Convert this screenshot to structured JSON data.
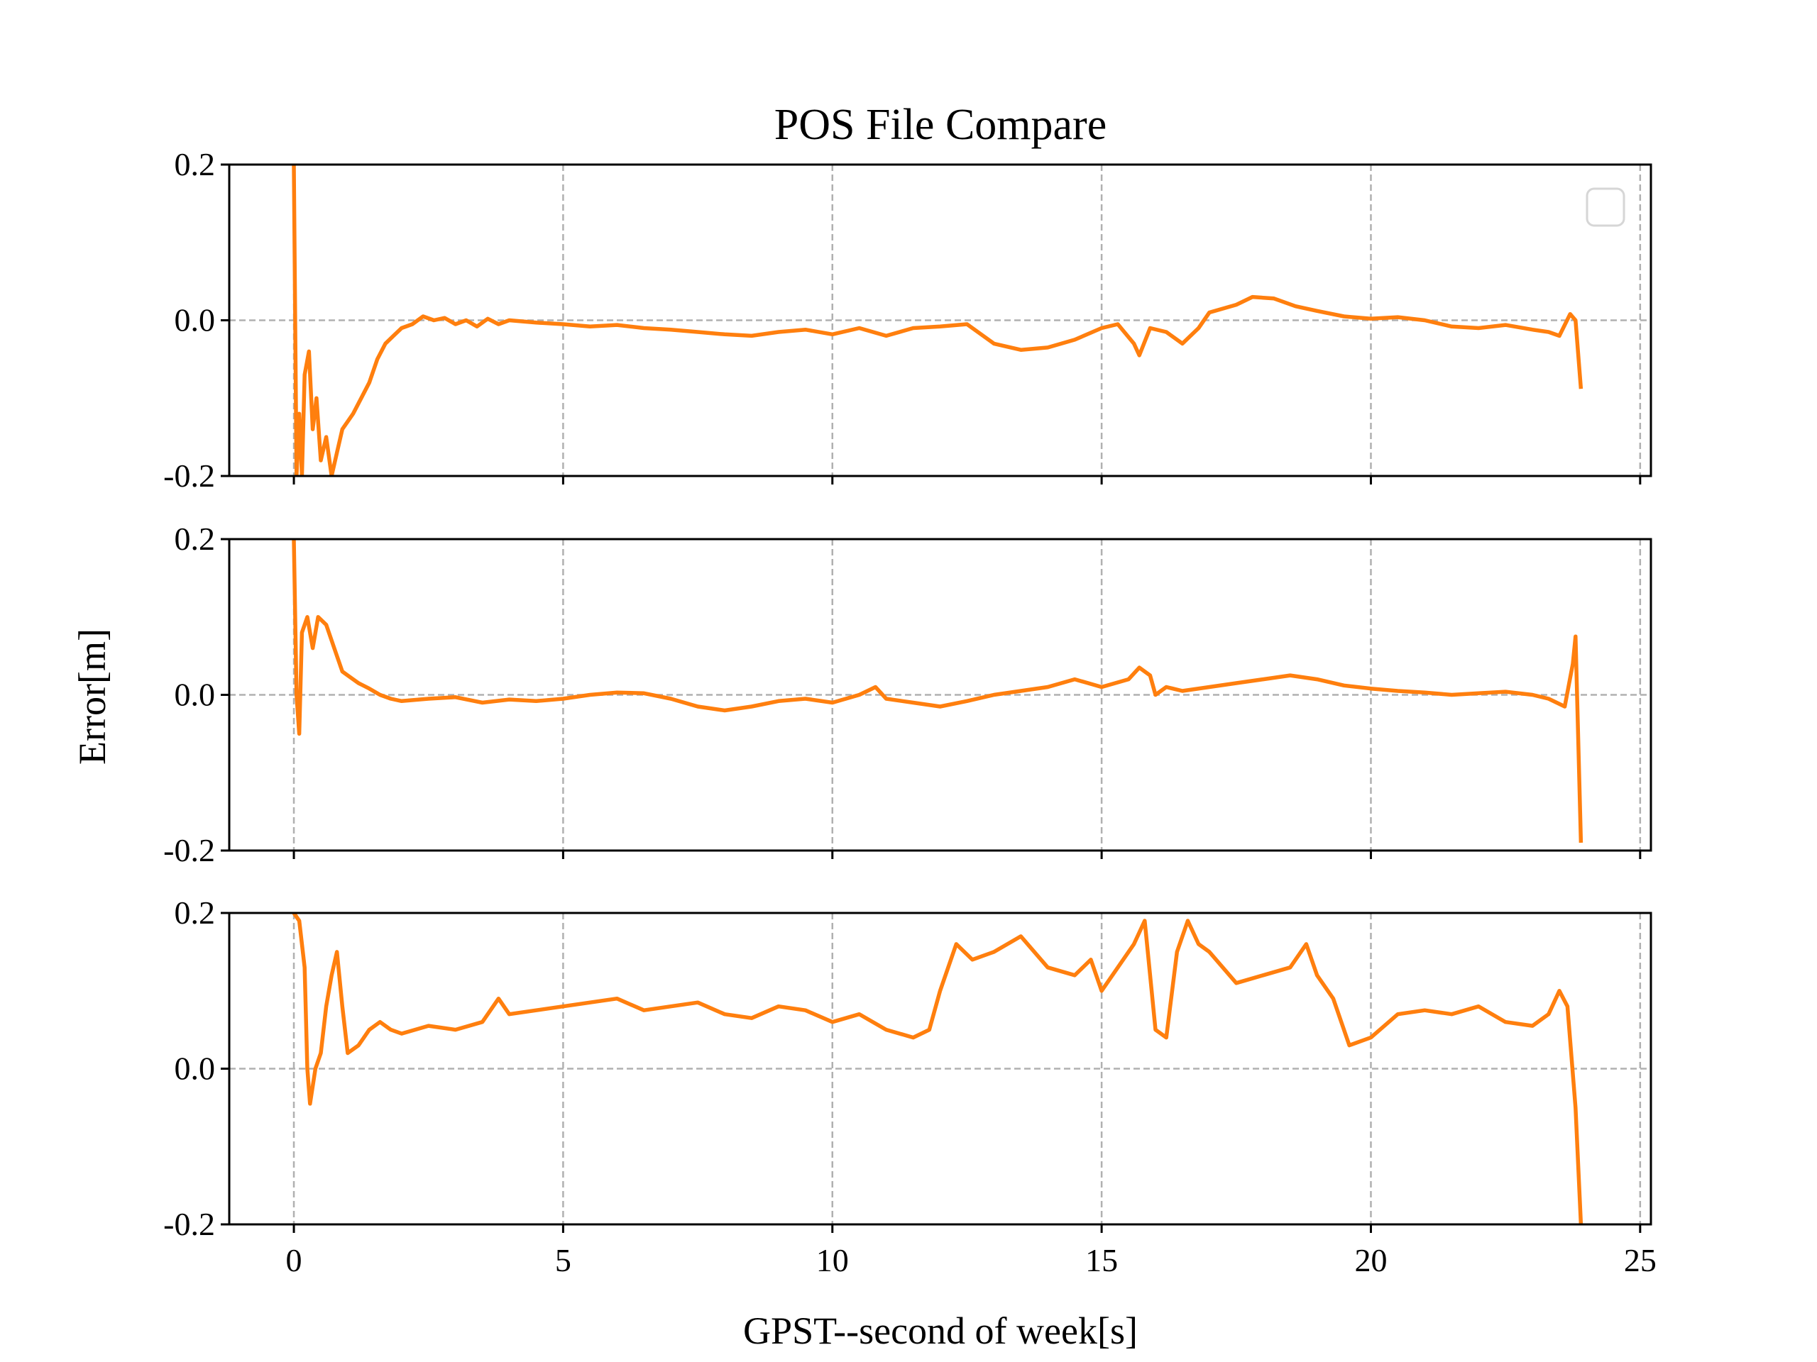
{
  "chart_data": {
    "type": "line",
    "title": "POS File Compare",
    "xlabel": "GPST--second of week[s]",
    "ylabel": "Error[m]",
    "xlim": [
      -1.2,
      25.2
    ],
    "xticks": [
      "0",
      "5",
      "10",
      "15",
      "20",
      "25"
    ],
    "xtick_values": [
      0,
      5,
      10,
      15,
      20,
      25
    ],
    "grid": true,
    "legend": "top-right (empty)",
    "line_color": "#ff7f0e",
    "panels": [
      {
        "name": "",
        "ylim": [
          -0.2,
          0.2
        ],
        "yticks": [
          "0.2",
          "0.0",
          "-0.2"
        ],
        "ytick_values": [
          0.2,
          0.0,
          -0.2
        ],
        "has_legend": true,
        "points": [
          [
            0.0,
            0.2
          ],
          [
            0.05,
            -0.2
          ],
          [
            0.1,
            -0.12
          ],
          [
            0.15,
            -0.2
          ],
          [
            0.2,
            -0.07
          ],
          [
            0.28,
            -0.04
          ],
          [
            0.35,
            -0.14
          ],
          [
            0.42,
            -0.1
          ],
          [
            0.5,
            -0.18
          ],
          [
            0.6,
            -0.15
          ],
          [
            0.7,
            -0.2
          ],
          [
            0.8,
            -0.17
          ],
          [
            0.9,
            -0.14
          ],
          [
            1.0,
            -0.13
          ],
          [
            1.1,
            -0.12
          ],
          [
            1.25,
            -0.1
          ],
          [
            1.4,
            -0.08
          ],
          [
            1.55,
            -0.05
          ],
          [
            1.7,
            -0.03
          ],
          [
            1.85,
            -0.02
          ],
          [
            2.0,
            -0.01
          ],
          [
            2.2,
            -0.005
          ],
          [
            2.4,
            0.005
          ],
          [
            2.6,
            0.0
          ],
          [
            2.8,
            0.003
          ],
          [
            3.0,
            -0.005
          ],
          [
            3.2,
            0.0
          ],
          [
            3.4,
            -0.008
          ],
          [
            3.6,
            0.002
          ],
          [
            3.8,
            -0.005
          ],
          [
            4.0,
            0.0
          ],
          [
            4.5,
            -0.003
          ],
          [
            5.0,
            -0.005
          ],
          [
            5.5,
            -0.008
          ],
          [
            6.0,
            -0.006
          ],
          [
            6.5,
            -0.01
          ],
          [
            7.0,
            -0.012
          ],
          [
            7.5,
            -0.015
          ],
          [
            8.0,
            -0.018
          ],
          [
            8.5,
            -0.02
          ],
          [
            9.0,
            -0.015
          ],
          [
            9.5,
            -0.012
          ],
          [
            10.0,
            -0.018
          ],
          [
            10.5,
            -0.01
          ],
          [
            11.0,
            -0.02
          ],
          [
            11.5,
            -0.01
          ],
          [
            12.0,
            -0.008
          ],
          [
            12.5,
            -0.005
          ],
          [
            13.0,
            -0.03
          ],
          [
            13.5,
            -0.038
          ],
          [
            14.0,
            -0.035
          ],
          [
            14.5,
            -0.025
          ],
          [
            15.0,
            -0.01
          ],
          [
            15.3,
            -0.005
          ],
          [
            15.6,
            -0.03
          ],
          [
            15.7,
            -0.045
          ],
          [
            15.9,
            -0.01
          ],
          [
            16.2,
            -0.015
          ],
          [
            16.5,
            -0.03
          ],
          [
            16.8,
            -0.01
          ],
          [
            17.0,
            0.01
          ],
          [
            17.5,
            0.02
          ],
          [
            17.8,
            0.03
          ],
          [
            18.2,
            0.028
          ],
          [
            18.6,
            0.018
          ],
          [
            19.0,
            0.012
          ],
          [
            19.5,
            0.005
          ],
          [
            20.0,
            0.002
          ],
          [
            20.5,
            0.004
          ],
          [
            21.0,
            0.0
          ],
          [
            21.5,
            -0.008
          ],
          [
            22.0,
            -0.01
          ],
          [
            22.5,
            -0.006
          ],
          [
            23.0,
            -0.012
          ],
          [
            23.3,
            -0.015
          ],
          [
            23.5,
            -0.02
          ],
          [
            23.7,
            0.008
          ],
          [
            23.8,
            0.0
          ],
          [
            23.9,
            -0.088
          ]
        ]
      },
      {
        "name": "",
        "ylim": [
          -0.2,
          0.2
        ],
        "yticks": [
          "0.2",
          "0.0",
          "-0.2"
        ],
        "ytick_values": [
          0.2,
          0.0,
          -0.2
        ],
        "has_legend": false,
        "points": [
          [
            0.0,
            0.2
          ],
          [
            0.05,
            0.0
          ],
          [
            0.1,
            -0.05
          ],
          [
            0.15,
            0.08
          ],
          [
            0.25,
            0.1
          ],
          [
            0.35,
            0.06
          ],
          [
            0.45,
            0.1
          ],
          [
            0.6,
            0.09
          ],
          [
            0.75,
            0.06
          ],
          [
            0.9,
            0.03
          ],
          [
            1.0,
            0.025
          ],
          [
            1.2,
            0.015
          ],
          [
            1.4,
            0.008
          ],
          [
            1.6,
            0.0
          ],
          [
            1.8,
            -0.005
          ],
          [
            2.0,
            -0.008
          ],
          [
            2.5,
            -0.005
          ],
          [
            3.0,
            -0.003
          ],
          [
            3.5,
            -0.01
          ],
          [
            4.0,
            -0.006
          ],
          [
            4.5,
            -0.008
          ],
          [
            5.0,
            -0.005
          ],
          [
            5.5,
            0.0
          ],
          [
            6.0,
            0.003
          ],
          [
            6.5,
            0.002
          ],
          [
            7.0,
            -0.005
          ],
          [
            7.5,
            -0.015
          ],
          [
            8.0,
            -0.02
          ],
          [
            8.5,
            -0.015
          ],
          [
            9.0,
            -0.008
          ],
          [
            9.5,
            -0.005
          ],
          [
            10.0,
            -0.01
          ],
          [
            10.5,
            0.0
          ],
          [
            10.8,
            0.01
          ],
          [
            11.0,
            -0.005
          ],
          [
            11.5,
            -0.01
          ],
          [
            12.0,
            -0.015
          ],
          [
            12.5,
            -0.008
          ],
          [
            13.0,
            0.0
          ],
          [
            13.5,
            0.005
          ],
          [
            14.0,
            0.01
          ],
          [
            14.5,
            0.02
          ],
          [
            15.0,
            0.01
          ],
          [
            15.5,
            0.02
          ],
          [
            15.7,
            0.035
          ],
          [
            15.9,
            0.025
          ],
          [
            16.0,
            0.0
          ],
          [
            16.2,
            0.01
          ],
          [
            16.5,
            0.005
          ],
          [
            17.0,
            0.01
          ],
          [
            17.5,
            0.015
          ],
          [
            18.0,
            0.02
          ],
          [
            18.5,
            0.025
          ],
          [
            19.0,
            0.02
          ],
          [
            19.5,
            0.012
          ],
          [
            20.0,
            0.008
          ],
          [
            20.5,
            0.005
          ],
          [
            21.0,
            0.003
          ],
          [
            21.5,
            0.0
          ],
          [
            22.0,
            0.002
          ],
          [
            22.5,
            0.004
          ],
          [
            23.0,
            0.0
          ],
          [
            23.3,
            -0.005
          ],
          [
            23.6,
            -0.015
          ],
          [
            23.75,
            0.04
          ],
          [
            23.8,
            0.075
          ],
          [
            23.9,
            -0.19
          ]
        ]
      },
      {
        "name": "",
        "ylim": [
          -0.2,
          0.2
        ],
        "yticks": [
          "0.2",
          "0.0",
          "-0.2"
        ],
        "ytick_values": [
          0.2,
          0.0,
          -0.2
        ],
        "has_legend": false,
        "points": [
          [
            0.0,
            0.2
          ],
          [
            0.1,
            0.19
          ],
          [
            0.2,
            0.13
          ],
          [
            0.25,
            0.0
          ],
          [
            0.3,
            -0.045
          ],
          [
            0.4,
            0.0
          ],
          [
            0.5,
            0.02
          ],
          [
            0.6,
            0.08
          ],
          [
            0.7,
            0.12
          ],
          [
            0.8,
            0.15
          ],
          [
            0.9,
            0.08
          ],
          [
            1.0,
            0.02
          ],
          [
            1.2,
            0.03
          ],
          [
            1.4,
            0.05
          ],
          [
            1.6,
            0.06
          ],
          [
            1.8,
            0.05
          ],
          [
            2.0,
            0.045
          ],
          [
            2.5,
            0.055
          ],
          [
            3.0,
            0.05
          ],
          [
            3.5,
            0.06
          ],
          [
            3.8,
            0.09
          ],
          [
            4.0,
            0.07
          ],
          [
            4.5,
            0.075
          ],
          [
            5.0,
            0.08
          ],
          [
            5.5,
            0.085
          ],
          [
            6.0,
            0.09
          ],
          [
            6.5,
            0.075
          ],
          [
            7.0,
            0.08
          ],
          [
            7.5,
            0.085
          ],
          [
            8.0,
            0.07
          ],
          [
            8.5,
            0.065
          ],
          [
            9.0,
            0.08
          ],
          [
            9.5,
            0.075
          ],
          [
            10.0,
            0.06
          ],
          [
            10.5,
            0.07
          ],
          [
            11.0,
            0.05
          ],
          [
            11.5,
            0.04
          ],
          [
            11.8,
            0.05
          ],
          [
            12.0,
            0.1
          ],
          [
            12.3,
            0.16
          ],
          [
            12.6,
            0.14
          ],
          [
            13.0,
            0.15
          ],
          [
            13.5,
            0.17
          ],
          [
            14.0,
            0.13
          ],
          [
            14.5,
            0.12
          ],
          [
            14.8,
            0.14
          ],
          [
            15.0,
            0.1
          ],
          [
            15.3,
            0.13
          ],
          [
            15.6,
            0.16
          ],
          [
            15.8,
            0.19
          ],
          [
            16.0,
            0.05
          ],
          [
            16.2,
            0.04
          ],
          [
            16.4,
            0.15
          ],
          [
            16.6,
            0.19
          ],
          [
            16.8,
            0.16
          ],
          [
            17.0,
            0.15
          ],
          [
            17.5,
            0.11
          ],
          [
            18.0,
            0.12
          ],
          [
            18.5,
            0.13
          ],
          [
            18.8,
            0.16
          ],
          [
            19.0,
            0.12
          ],
          [
            19.3,
            0.09
          ],
          [
            19.6,
            0.03
          ],
          [
            20.0,
            0.04
          ],
          [
            20.5,
            0.07
          ],
          [
            21.0,
            0.075
          ],
          [
            21.5,
            0.07
          ],
          [
            22.0,
            0.08
          ],
          [
            22.5,
            0.06
          ],
          [
            23.0,
            0.055
          ],
          [
            23.3,
            0.07
          ],
          [
            23.5,
            0.1
          ],
          [
            23.65,
            0.08
          ],
          [
            23.8,
            -0.05
          ],
          [
            23.9,
            -0.2
          ]
        ]
      }
    ]
  }
}
